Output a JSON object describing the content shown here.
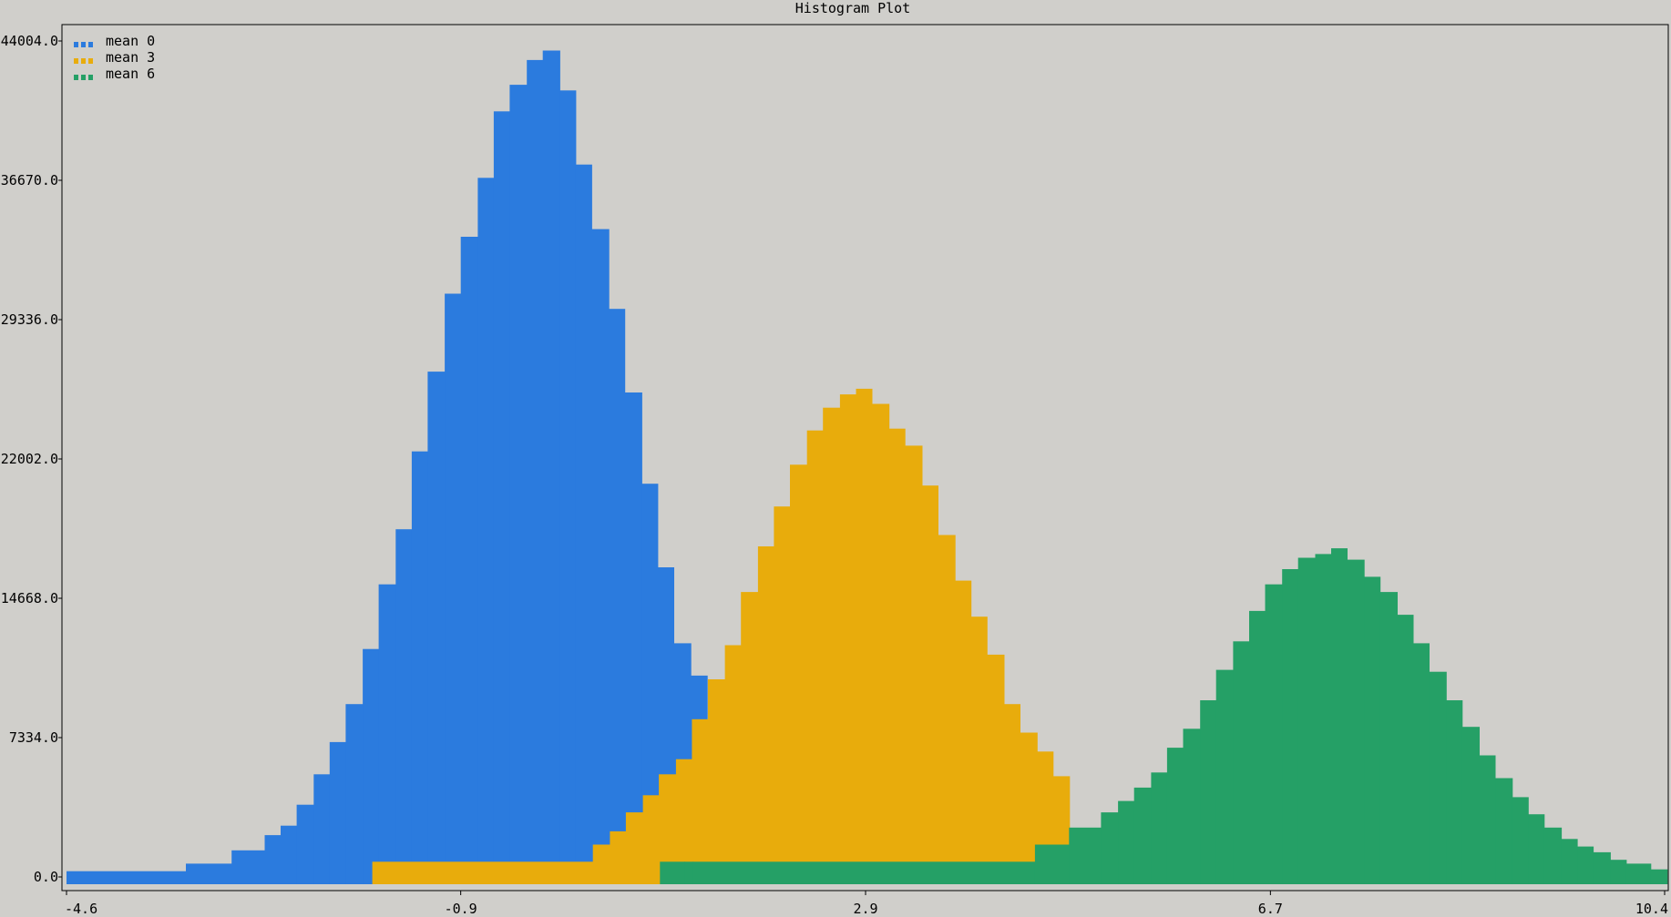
{
  "chart_data": {
    "type": "bar",
    "title": "Histogram Plot",
    "xlabel": "",
    "ylabel": "",
    "xlim": [
      -4.6,
      10.4
    ],
    "ylim": [
      0,
      44004
    ],
    "x_ticks": [
      "-4.6",
      "-0.9",
      "2.9",
      "6.7",
      "10.4"
    ],
    "y_ticks": [
      "0.0",
      "7334.0",
      "14668.0",
      "22002.0",
      "29336.0",
      "36670.0",
      "44004.0"
    ],
    "legend_position": "top-left",
    "grid": false,
    "bin_width": 0.1538,
    "series": [
      {
        "name": "mean 0",
        "color": "#2b7bde",
        "bins": [
          [
            -4.6,
            300
          ],
          [
            -3.48,
            700
          ],
          [
            -3.05,
            1400
          ],
          [
            -2.74,
            2200
          ],
          [
            -2.59,
            2700
          ],
          [
            -2.44,
            3800
          ],
          [
            -2.28,
            5400
          ],
          [
            -2.13,
            7100
          ],
          [
            -1.98,
            9100
          ],
          [
            -1.82,
            12000
          ],
          [
            -1.67,
            15400
          ],
          [
            -1.51,
            18300
          ],
          [
            -1.36,
            22400
          ],
          [
            -1.21,
            26600
          ],
          [
            -1.05,
            30700
          ],
          [
            -0.9,
            33700
          ],
          [
            -0.74,
            36800
          ],
          [
            -0.59,
            40300
          ],
          [
            -0.44,
            41700
          ],
          [
            -0.28,
            43000
          ],
          [
            -0.13,
            43500
          ],
          [
            0.03,
            41400
          ],
          [
            0.18,
            37500
          ],
          [
            0.33,
            34100
          ],
          [
            0.49,
            29900
          ],
          [
            0.64,
            25500
          ],
          [
            0.8,
            20700
          ],
          [
            0.95,
            16300
          ],
          [
            1.1,
            12300
          ],
          [
            1.26,
            10600
          ]
        ]
      },
      {
        "name": "mean 3",
        "color": "#e8ac0c",
        "bins": [
          [
            -1.73,
            800
          ],
          [
            0.34,
            1700
          ],
          [
            0.5,
            2400
          ],
          [
            0.65,
            3400
          ],
          [
            0.81,
            4300
          ],
          [
            0.96,
            5400
          ],
          [
            1.12,
            6200
          ],
          [
            1.27,
            8300
          ],
          [
            1.42,
            10400
          ],
          [
            1.58,
            12200
          ],
          [
            1.73,
            15000
          ],
          [
            1.89,
            17400
          ],
          [
            2.04,
            19500
          ],
          [
            2.19,
            21700
          ],
          [
            2.35,
            23500
          ],
          [
            2.5,
            24700
          ],
          [
            2.66,
            25400
          ],
          [
            2.81,
            25700
          ],
          [
            2.96,
            24900
          ],
          [
            3.12,
            23600
          ],
          [
            3.27,
            22700
          ],
          [
            3.43,
            20600
          ],
          [
            3.58,
            18000
          ],
          [
            3.74,
            15600
          ],
          [
            3.89,
            13700
          ],
          [
            4.04,
            11700
          ],
          [
            4.2,
            9100
          ],
          [
            4.35,
            7600
          ],
          [
            4.51,
            6600
          ],
          [
            4.66,
            5300
          ]
        ]
      },
      {
        "name": "mean 6",
        "color": "#25a066",
        "bins": [
          [
            0.97,
            800
          ],
          [
            1.2,
            800
          ],
          [
            1.28,
            800
          ],
          [
            4.49,
            1700
          ],
          [
            4.81,
            2600
          ],
          [
            5.11,
            3400
          ],
          [
            5.27,
            4000
          ],
          [
            5.42,
            4700
          ],
          [
            5.58,
            5500
          ],
          [
            5.73,
            6800
          ],
          [
            5.88,
            7800
          ],
          [
            6.04,
            9300
          ],
          [
            6.19,
            10900
          ],
          [
            6.35,
            12400
          ],
          [
            6.5,
            14000
          ],
          [
            6.65,
            15400
          ],
          [
            6.81,
            16200
          ],
          [
            6.96,
            16800
          ],
          [
            7.12,
            17000
          ],
          [
            7.27,
            17300
          ],
          [
            7.42,
            16700
          ],
          [
            7.58,
            15800
          ],
          [
            7.73,
            15000
          ],
          [
            7.89,
            13800
          ],
          [
            8.04,
            12300
          ],
          [
            8.19,
            10800
          ],
          [
            8.35,
            9300
          ],
          [
            8.5,
            7900
          ],
          [
            8.66,
            6400
          ],
          [
            8.81,
            5200
          ],
          [
            8.97,
            4200
          ],
          [
            9.12,
            3300
          ],
          [
            9.27,
            2600
          ],
          [
            9.43,
            2000
          ],
          [
            9.58,
            1600
          ],
          [
            9.73,
            1300
          ],
          [
            9.89,
            900
          ],
          [
            10.04,
            700
          ],
          [
            10.27,
            400
          ]
        ]
      }
    ]
  }
}
